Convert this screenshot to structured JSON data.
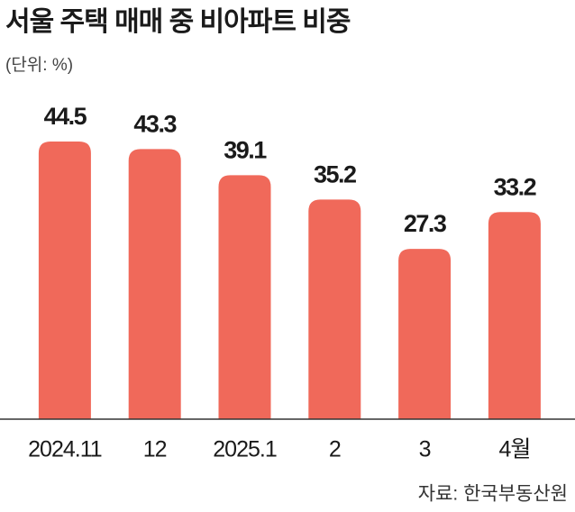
{
  "chart_data": {
    "type": "bar",
    "title": "서울 주택 매매 중 비아파트 비중",
    "subtitle": "(단위: %)",
    "categories": [
      "2024.11",
      "12",
      "2025.1",
      "2",
      "3",
      "4월"
    ],
    "values": [
      44.5,
      43.3,
      39.1,
      35.2,
      27.3,
      33.2
    ],
    "color": "#f0695a",
    "source": "자료: 한국부동산원"
  }
}
